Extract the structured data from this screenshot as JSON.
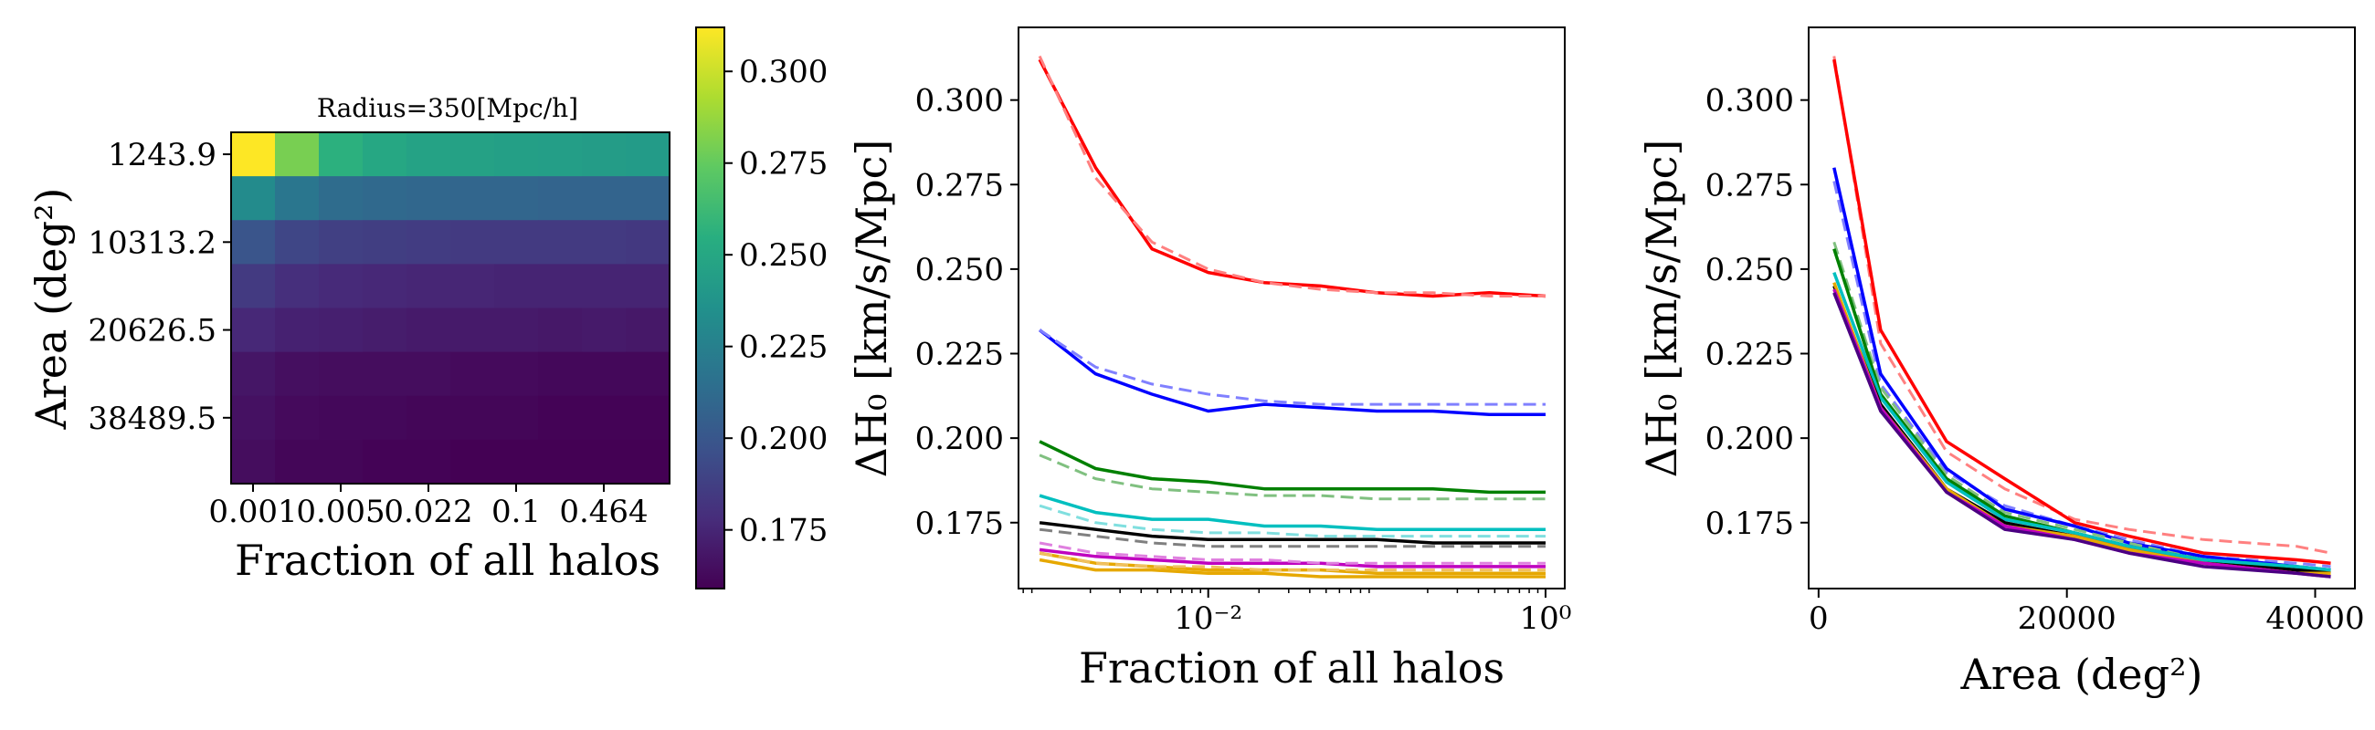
{
  "chart_data": [
    {
      "type": "heatmap",
      "title": "Radius=350[Mpc/h]",
      "xlabel": "Fraction of all halos",
      "ylabel": "Area (deg²)",
      "x_ticks": [
        "0.001",
        "0.005",
        "0.022",
        "0.1",
        "0.464"
      ],
      "y_ticks": [
        "1243.9",
        "10313.2",
        "20626.5",
        "38489.5"
      ],
      "colorbar_ticks": [
        0.3,
        0.275,
        0.25,
        0.225,
        0.2,
        0.175
      ],
      "colorbar_tick_labels": [
        "0.300",
        "0.275",
        "0.250",
        "0.225",
        "0.200",
        "0.175"
      ],
      "color_range": [
        0.159,
        0.312
      ],
      "colormap": "viridis",
      "values": [
        [
          0.312,
          0.28,
          0.256,
          0.25,
          0.247,
          0.246,
          0.245,
          0.244,
          0.243,
          0.242
        ],
        [
          0.232,
          0.219,
          0.213,
          0.211,
          0.21,
          0.209,
          0.209,
          0.208,
          0.208,
          0.208
        ],
        [
          0.199,
          0.191,
          0.188,
          0.187,
          0.186,
          0.185,
          0.185,
          0.185,
          0.185,
          0.184
        ],
        [
          0.185,
          0.179,
          0.177,
          0.176,
          0.175,
          0.175,
          0.174,
          0.174,
          0.174,
          0.174
        ],
        [
          0.176,
          0.173,
          0.172,
          0.171,
          0.17,
          0.17,
          0.17,
          0.169,
          0.17,
          0.169
        ],
        [
          0.168,
          0.165,
          0.164,
          0.164,
          0.164,
          0.163,
          0.163,
          0.162,
          0.162,
          0.162
        ],
        [
          0.166,
          0.163,
          0.162,
          0.162,
          0.161,
          0.161,
          0.161,
          0.16,
          0.16,
          0.16
        ],
        [
          0.164,
          0.161,
          0.161,
          0.16,
          0.16,
          0.159,
          0.159,
          0.159,
          0.159,
          0.159
        ]
      ]
    },
    {
      "type": "line",
      "xlabel": "Fraction of all halos",
      "ylabel": "ΔH₀ [km/s/Mpc]",
      "x_scale": "log",
      "xlim": [
        0.00075,
        1.3
      ],
      "ylim": [
        0.1555,
        0.3215
      ],
      "x_tick_values": [
        0.01,
        1
      ],
      "x_tick_labels": [
        "10⁻²",
        "10⁰"
      ],
      "y_ticks": [
        0.175,
        0.2,
        0.225,
        0.25,
        0.275,
        0.3
      ],
      "y_tick_labels": [
        "0.175",
        "0.200",
        "0.225",
        "0.250",
        "0.275",
        "0.300"
      ],
      "x": [
        0.001,
        0.00215,
        0.00464,
        0.01,
        0.0215,
        0.0464,
        0.1,
        0.215,
        0.464,
        1.0
      ],
      "series": [
        {
          "color": "#ff0000",
          "style": "solid",
          "values": [
            0.312,
            0.28,
            0.256,
            0.249,
            0.246,
            0.245,
            0.243,
            0.242,
            0.243,
            0.242
          ]
        },
        {
          "color": "#ff8080",
          "style": "dashed",
          "values": [
            0.313,
            0.277,
            0.258,
            0.25,
            0.246,
            0.244,
            0.243,
            0.243,
            0.242,
            0.242
          ]
        },
        {
          "color": "#0000ff",
          "style": "solid",
          "values": [
            0.232,
            0.219,
            0.213,
            0.208,
            0.21,
            0.209,
            0.208,
            0.208,
            0.207,
            0.207
          ]
        },
        {
          "color": "#8080ff",
          "style": "dashed",
          "values": [
            0.232,
            0.221,
            0.216,
            0.213,
            0.211,
            0.21,
            0.21,
            0.21,
            0.21,
            0.21
          ]
        },
        {
          "color": "#008000",
          "style": "solid",
          "values": [
            0.199,
            0.191,
            0.188,
            0.187,
            0.185,
            0.185,
            0.185,
            0.185,
            0.184,
            0.184
          ]
        },
        {
          "color": "#80c080",
          "style": "dashed",
          "values": [
            0.195,
            0.188,
            0.185,
            0.184,
            0.183,
            0.183,
            0.182,
            0.182,
            0.182,
            0.182
          ]
        },
        {
          "color": "#00bfbf",
          "style": "solid",
          "values": [
            0.183,
            0.178,
            0.176,
            0.176,
            0.174,
            0.174,
            0.173,
            0.173,
            0.173,
            0.173
          ]
        },
        {
          "color": "#80dfdf",
          "style": "dashed",
          "values": [
            0.18,
            0.175,
            0.173,
            0.172,
            0.172,
            0.171,
            0.171,
            0.171,
            0.171,
            0.171
          ]
        },
        {
          "color": "#000000",
          "style": "solid",
          "values": [
            0.175,
            0.173,
            0.171,
            0.17,
            0.17,
            0.17,
            0.17,
            0.169,
            0.169,
            0.169
          ]
        },
        {
          "color": "#808080",
          "style": "dashed",
          "values": [
            0.173,
            0.171,
            0.169,
            0.168,
            0.168,
            0.168,
            0.168,
            0.168,
            0.168,
            0.168
          ]
        },
        {
          "color": "#bf00bf",
          "style": "solid",
          "values": [
            0.167,
            0.165,
            0.164,
            0.163,
            0.163,
            0.163,
            0.162,
            0.162,
            0.162,
            0.162
          ]
        },
        {
          "color": "#df80df",
          "style": "dashed",
          "values": [
            0.169,
            0.166,
            0.165,
            0.164,
            0.164,
            0.163,
            0.163,
            0.163,
            0.163,
            0.163
          ]
        },
        {
          "color": "#e6a800",
          "style": "solid",
          "values": [
            0.166,
            0.163,
            0.162,
            0.161,
            0.161,
            0.161,
            0.16,
            0.16,
            0.16,
            0.16
          ]
        },
        {
          "color": "#f0c060",
          "style": "dashed",
          "values": [
            0.166,
            0.163,
            0.162,
            0.162,
            0.161,
            0.161,
            0.161,
            0.161,
            0.161,
            0.161
          ]
        },
        {
          "color": "#e6a800",
          "style": "solid",
          "values": [
            0.164,
            0.161,
            0.161,
            0.16,
            0.16,
            0.159,
            0.159,
            0.159,
            0.159,
            0.159
          ]
        }
      ]
    },
    {
      "type": "line",
      "xlabel": "Area (deg²)",
      "ylabel": "ΔH₀ [km/s/Mpc]",
      "xlim": [
        -800,
        43200
      ],
      "ylim": [
        0.1555,
        0.3215
      ],
      "x_ticks": [
        0,
        20000,
        40000
      ],
      "x_tick_labels": [
        "0",
        "20000",
        "40000"
      ],
      "y_ticks": [
        0.175,
        0.2,
        0.225,
        0.25,
        0.275,
        0.3
      ],
      "y_tick_labels": [
        "0.175",
        "0.200",
        "0.225",
        "0.250",
        "0.275",
        "0.300"
      ],
      "x": [
        1243.9,
        5000,
        10313.2,
        15000,
        20626.5,
        25000,
        31000,
        38489.5,
        41253
      ],
      "series": [
        {
          "color": "#ff8080",
          "style": "dashed",
          "values": [
            0.313,
            0.228,
            0.196,
            0.185,
            0.176,
            0.173,
            0.17,
            0.168,
            0.166
          ]
        },
        {
          "color": "#ff0000",
          "style": "solid",
          "values": [
            0.312,
            0.232,
            0.199,
            0.188,
            0.175,
            0.171,
            0.166,
            0.164,
            0.163
          ]
        },
        {
          "color": "#8080ff",
          "style": "dashed",
          "values": [
            0.276,
            0.216,
            0.19,
            0.18,
            0.174,
            0.17,
            0.165,
            0.163,
            0.162
          ]
        },
        {
          "color": "#0000ff",
          "style": "solid",
          "values": [
            0.28,
            0.219,
            0.191,
            0.179,
            0.174,
            0.169,
            0.165,
            0.162,
            0.161
          ]
        },
        {
          "color": "#80c080",
          "style": "dashed",
          "values": [
            0.258,
            0.215,
            0.189,
            0.178,
            0.173,
            0.169,
            0.164,
            0.162,
            0.161
          ]
        },
        {
          "color": "#008000",
          "style": "solid",
          "values": [
            0.256,
            0.213,
            0.188,
            0.177,
            0.172,
            0.168,
            0.164,
            0.161,
            0.161
          ]
        },
        {
          "color": "#00bfbf",
          "style": "solid",
          "values": [
            0.249,
            0.212,
            0.187,
            0.176,
            0.172,
            0.168,
            0.164,
            0.162,
            0.161
          ]
        },
        {
          "color": "#000000",
          "style": "solid",
          "values": [
            0.245,
            0.21,
            0.185,
            0.175,
            0.171,
            0.167,
            0.163,
            0.161,
            0.16
          ]
        },
        {
          "color": "#e6a800",
          "style": "solid",
          "values": [
            0.246,
            0.209,
            0.185,
            0.174,
            0.171,
            0.167,
            0.163,
            0.16,
            0.16
          ]
        },
        {
          "color": "#bf00bf",
          "style": "solid",
          "values": [
            0.244,
            0.209,
            0.184,
            0.174,
            0.17,
            0.166,
            0.163,
            0.16,
            0.159
          ]
        },
        {
          "color": "#4b0082",
          "style": "solid",
          "values": [
            0.243,
            0.208,
            0.184,
            0.173,
            0.17,
            0.166,
            0.162,
            0.16,
            0.159
          ]
        }
      ]
    }
  ]
}
